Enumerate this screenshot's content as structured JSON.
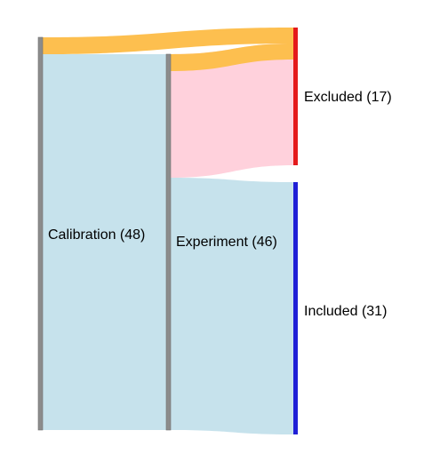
{
  "diagram": {
    "type": "sankey",
    "nodes": [
      {
        "id": "calibration",
        "label": "Calibration (48)",
        "value": 48,
        "color": "#8c8c8c"
      },
      {
        "id": "experiment",
        "label": "Experiment (46)",
        "value": 46,
        "color": "#8c8c8c"
      },
      {
        "id": "excluded",
        "label": "Excluded (17)",
        "value": 17,
        "color": "#e41a1c"
      },
      {
        "id": "included",
        "label": "Included (31)",
        "value": 31,
        "color": "#1f1fd6"
      }
    ],
    "links": [
      {
        "source": "calibration",
        "target": "excluded",
        "value": 2,
        "color": "#fdbf4f"
      },
      {
        "source": "calibration",
        "target": "experiment",
        "value": 46,
        "color": "#c6e2ec"
      },
      {
        "source": "experiment",
        "target": "excluded",
        "value": 15,
        "color": "#ffd1dc"
      },
      {
        "source": "experiment",
        "target": "included",
        "value": 31,
        "color": "#c6e2ec"
      }
    ],
    "highlight_colors": {
      "orange_flow": "#fdbf4f",
      "excluded_flow": "#ffd1dc",
      "included_flow": "#c6e2ec"
    }
  }
}
